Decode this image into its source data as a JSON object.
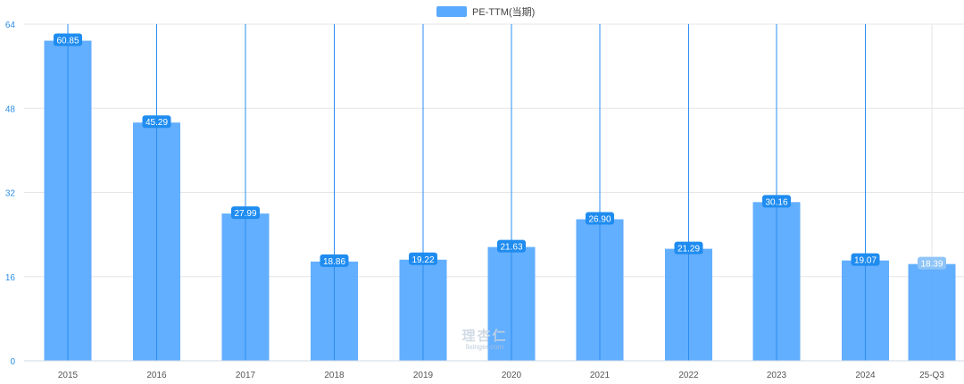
{
  "legend": {
    "label": "PE-TTM(当期)",
    "color": "#5aaaff"
  },
  "watermark": {
    "title": "理杏仁",
    "subtitle": "lixinger.com"
  },
  "chart_data": {
    "type": "bar",
    "categories": [
      "2015",
      "2016",
      "2017",
      "2018",
      "2019",
      "2020",
      "2021",
      "2022",
      "2023",
      "2024",
      "25-Q3"
    ],
    "series": [
      {
        "name": "PE-TTM(当期)",
        "values": [
          60.85,
          45.29,
          27.99,
          18.86,
          19.22,
          21.63,
          26.9,
          21.29,
          30.16,
          19.07,
          18.39
        ]
      }
    ],
    "value_labels": [
      "60.85",
      "45.29",
      "27.99",
      "18.86",
      "19.22",
      "21.63",
      "26.90",
      "21.29",
      "30.16",
      "19.07",
      "18.39"
    ],
    "yticks": [
      "0",
      "16",
      "32",
      "48",
      "64"
    ],
    "ylim": [
      0,
      64
    ],
    "grid": true,
    "legend_position": "top-center",
    "colors": {
      "bar": "#5aaaff",
      "bar_line": "#2a8df0",
      "label_bg": "#1f8cf0",
      "label_bg_last": "#8ec4f7",
      "axis_text_y": "#2f8ee6",
      "axis_text_x": "#555555",
      "grid": "#e6e6e6"
    }
  }
}
